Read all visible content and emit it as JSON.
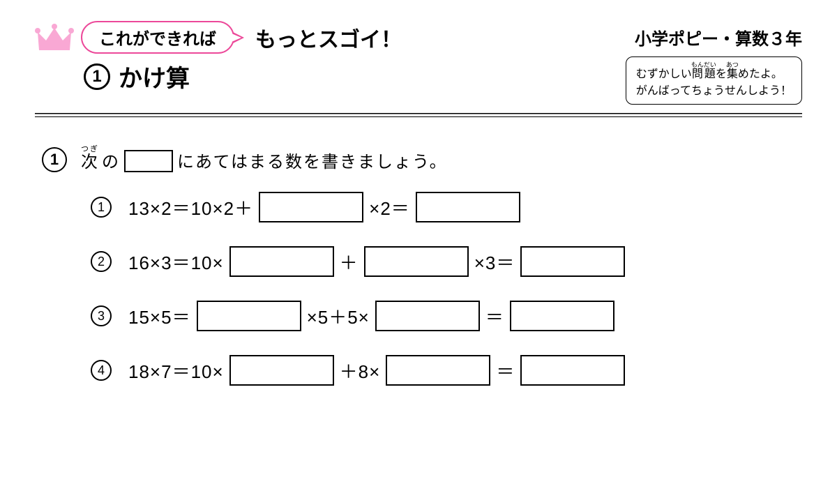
{
  "header": {
    "bubble_text": "これができれば",
    "main_title": "もっとスゴイ！",
    "series_title": "小学ポピー・算数３年",
    "section_number": "1",
    "section_title": "かけ算",
    "note_line1_pre": "むずかしい",
    "note_line1_ruby_base": "問題",
    "note_line1_ruby_rt": "もんだい",
    "note_line1_mid": "を",
    "note_line1_ruby2_base": "集",
    "note_line1_ruby2_rt": "あつ",
    "note_line1_post": "めたよ。",
    "note_line2": "がんばってちょうせんしよう！"
  },
  "colors": {
    "pink": "#ec4899",
    "crown": "#f9a8d4",
    "black": "#000000",
    "bg": "#ffffff"
  },
  "question": {
    "number": "1",
    "instruction_ruby_base": "次",
    "instruction_ruby_rt": "つぎ",
    "instruction_pre": "の",
    "instruction_post": "にあてはまる数を書きましょう。"
  },
  "problems": [
    {
      "num": "1",
      "parts": [
        "13×2＝10×2＋",
        "[box]",
        "×2＝",
        "[box]"
      ]
    },
    {
      "num": "2",
      "parts": [
        "16×3＝10×",
        "[box]",
        "＋",
        "[box]",
        "×3＝",
        "[box]"
      ]
    },
    {
      "num": "3",
      "parts": [
        "15×5＝",
        "[box]",
        "×5＋5×",
        "[box]",
        "＝",
        "[box]"
      ]
    },
    {
      "num": "4",
      "parts": [
        "18×7＝10×",
        "[box]",
        "＋8×",
        "[box]",
        "＝",
        "[box]"
      ]
    }
  ]
}
